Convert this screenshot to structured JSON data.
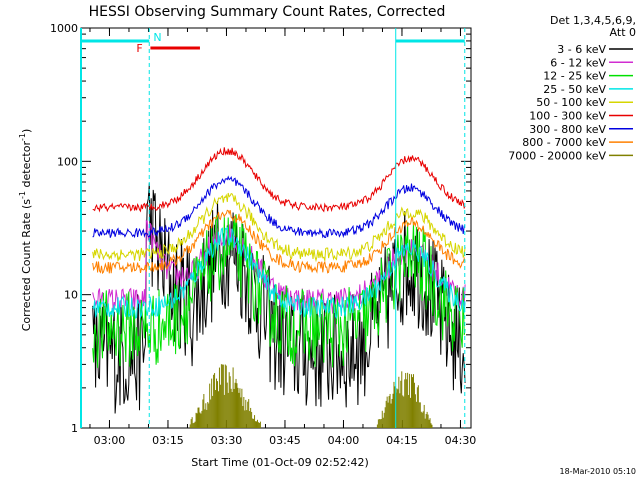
{
  "chart_data": {
    "type": "line",
    "title": "HESSI Observing Summary Count Rates, Corrected",
    "xlabel": "Start Time (01-Oct-09 02:52:42)",
    "ylabel_main": "Corrected Count Rate (s",
    "ylabel_sup1": "-1",
    "ylabel_mid": " detector",
    "ylabel_sup2": "-1",
    "ylabel_end": ")",
    "y_scale": "log",
    "ylim": [
      1,
      1000
    ],
    "xlim_minutes": [
      0,
      100
    ],
    "x_ticks": [
      {
        "min": 7.3,
        "label": "03:00"
      },
      {
        "min": 22.3,
        "label": "03:15"
      },
      {
        "min": 37.3,
        "label": "03:30"
      },
      {
        "min": 52.3,
        "label": "03:45"
      },
      {
        "min": 67.3,
        "label": "04:00"
      },
      {
        "min": 82.3,
        "label": "04:15"
      },
      {
        "min": 97.3,
        "label": "04:30"
      }
    ],
    "y_ticks": [
      {
        "v": 1,
        "label": "1"
      },
      {
        "v": 10,
        "label": "10"
      },
      {
        "v": 100,
        "label": "100"
      },
      {
        "v": 1000,
        "label": "1000"
      }
    ],
    "legend_header": [
      "Det 1,3,4,5,6,9,",
      "Att 0"
    ],
    "series": [
      {
        "name": "3 - 6 keV",
        "color": "#000000",
        "base": 3.6,
        "peak1": 22,
        "peak2": 17,
        "noise": 0.18
      },
      {
        "name": "6 - 12 keV",
        "color": "#d12cd1",
        "base": 9,
        "peak1": 28,
        "peak2": 22,
        "noise": 0.1
      },
      {
        "name": "12 - 25 keV",
        "color": "#00e000",
        "base": 5.5,
        "peak1": 22,
        "peak2": 19,
        "noise": 0.12
      },
      {
        "name": "25 - 50 keV",
        "color": "#00e6e6",
        "base": 8,
        "peak1": 27,
        "peak2": 22,
        "noise": 0.08
      },
      {
        "name": "50 - 100 keV",
        "color": "#d6d600",
        "base": 20,
        "peak1": 52,
        "peak2": 42,
        "noise": 0.05
      },
      {
        "name": "100 - 300 keV",
        "color": "#e80000",
        "base": 45,
        "peak1": 120,
        "peak2": 105,
        "noise": 0.03
      },
      {
        "name": "300 - 800 keV",
        "color": "#0000e0",
        "base": 29,
        "peak1": 72,
        "peak2": 63,
        "noise": 0.035
      },
      {
        "name": "800 - 7000 keV",
        "color": "#ff8000",
        "base": 16,
        "peak1": 40,
        "peak2": 34,
        "noise": 0.045
      },
      {
        "name": "7000 - 20000 keV",
        "color": "#808000",
        "base": 1,
        "peak1": 2.4,
        "peak2": 2.2,
        "noise": 0
      }
    ],
    "flags": {
      "F_label": "F",
      "N_label": "N"
    },
    "timestamp": "18-Mar-2010 05:10"
  }
}
